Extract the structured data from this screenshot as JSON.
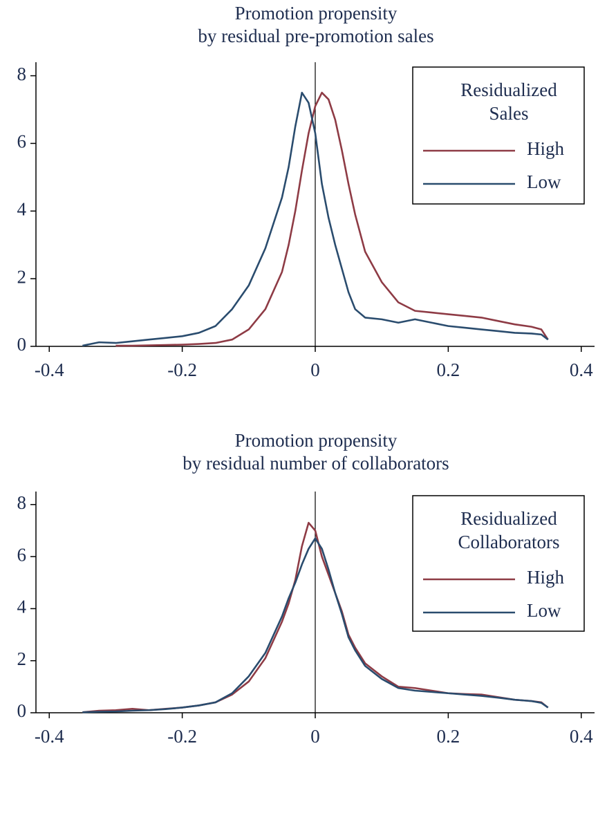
{
  "chart_data": [
    {
      "type": "line",
      "title": [
        "Promotion propensity",
        "by residual pre-promotion sales"
      ],
      "x": [
        -0.35,
        -0.325,
        -0.3,
        -0.275,
        -0.25,
        -0.225,
        -0.2,
        -0.175,
        -0.15,
        -0.125,
        -0.1,
        -0.075,
        -0.05,
        -0.04,
        -0.03,
        -0.02,
        -0.01,
        0,
        0.01,
        0.02,
        0.03,
        0.04,
        0.05,
        0.06,
        0.075,
        0.1,
        0.125,
        0.15,
        0.175,
        0.2,
        0.225,
        0.25,
        0.275,
        0.3,
        0.325,
        0.34,
        0.35
      ],
      "series": [
        {
          "name": "High",
          "color": "#8e3b45",
          "values": [
            null,
            null,
            0.02,
            0.02,
            0.03,
            0.04,
            0.05,
            0.07,
            0.1,
            0.2,
            0.5,
            1.1,
            2.2,
            3,
            4,
            5.2,
            6.3,
            7.1,
            7.5,
            7.3,
            6.7,
            5.8,
            4.8,
            3.9,
            2.8,
            1.9,
            1.3,
            1.05,
            1.0,
            0.95,
            0.9,
            0.85,
            0.75,
            0.65,
            0.58,
            0.5,
            0.2
          ]
        },
        {
          "name": "Low",
          "color": "#2a4c6e",
          "values": [
            0.02,
            0.12,
            0.1,
            0.15,
            0.2,
            0.25,
            0.3,
            0.4,
            0.6,
            1.1,
            1.8,
            2.9,
            4.4,
            5.3,
            6.5,
            7.5,
            7.2,
            6.3,
            4.8,
            3.8,
            3.0,
            2.3,
            1.6,
            1.1,
            0.85,
            0.8,
            0.7,
            0.8,
            0.7,
            0.6,
            0.55,
            0.5,
            0.45,
            0.4,
            0.38,
            0.35,
            0.2
          ]
        }
      ],
      "legend_title": [
        "Residualized",
        "Sales"
      ],
      "legend": "upper right",
      "xlim": [
        -0.42,
        0.42
      ],
      "xticks": [
        -0.4,
        -0.2,
        0,
        0.2,
        0.4
      ],
      "ylim": [
        0,
        8.4
      ],
      "yticks": [
        0,
        2,
        4,
        6,
        8
      ],
      "vline": 0
    },
    {
      "type": "line",
      "title": [
        "Promotion propensity",
        "by residual number of collaborators"
      ],
      "x": [
        -0.35,
        -0.325,
        -0.3,
        -0.275,
        -0.25,
        -0.225,
        -0.2,
        -0.175,
        -0.15,
        -0.125,
        -0.1,
        -0.075,
        -0.05,
        -0.04,
        -0.03,
        -0.02,
        -0.01,
        0,
        0.01,
        0.02,
        0.03,
        0.04,
        0.05,
        0.06,
        0.075,
        0.1,
        0.125,
        0.15,
        0.175,
        0.2,
        0.225,
        0.25,
        0.275,
        0.3,
        0.325,
        0.34,
        0.35
      ],
      "series": [
        {
          "name": "High",
          "color": "#8e3b45",
          "values": [
            0.02,
            0.08,
            0.1,
            0.15,
            0.1,
            0.15,
            0.2,
            0.28,
            0.4,
            0.7,
            1.2,
            2.1,
            3.5,
            4.2,
            5.1,
            6.4,
            7.3,
            7.0,
            6.0,
            5.3,
            4.6,
            3.9,
            3.0,
            2.5,
            1.9,
            1.4,
            1.0,
            0.95,
            0.85,
            0.75,
            0.72,
            0.7,
            0.6,
            0.5,
            0.45,
            0.4,
            0.2
          ]
        },
        {
          "name": "Low",
          "color": "#2a4c6e",
          "values": [
            0.02,
            0.04,
            0.05,
            0.08,
            0.1,
            0.14,
            0.2,
            0.28,
            0.4,
            0.75,
            1.4,
            2.3,
            3.7,
            4.4,
            5.0,
            5.7,
            6.3,
            6.7,
            6.3,
            5.5,
            4.6,
            3.8,
            2.9,
            2.4,
            1.8,
            1.3,
            0.95,
            0.85,
            0.8,
            0.75,
            0.7,
            0.65,
            0.58,
            0.5,
            0.45,
            0.38,
            0.2
          ]
        }
      ],
      "legend_title": [
        "Residualized",
        "Collaborators"
      ],
      "legend": "upper right",
      "xlim": [
        -0.42,
        0.42
      ],
      "xticks": [
        -0.4,
        -0.2,
        0,
        0.2,
        0.4
      ],
      "ylim": [
        0,
        8.5
      ],
      "yticks": [
        0,
        2,
        4,
        6,
        8
      ],
      "vline": 0
    }
  ]
}
